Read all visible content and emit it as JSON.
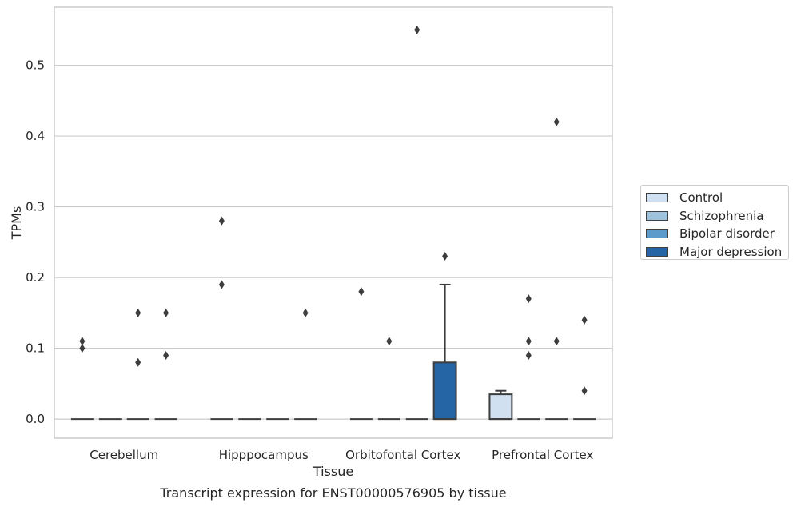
{
  "chart_data": {
    "type": "box",
    "title": "Transcript expression for ENST00000576905 by tissue",
    "xlabel": "Tissue",
    "ylabel": "TPMs",
    "categories": [
      "Cerebellum",
      "Hipppocampus",
      "Orbitofontal Cortex",
      "Prefrontal Cortex"
    ],
    "ylim": [
      -0.027,
      0.582
    ],
    "yticks": [
      0.0,
      0.1,
      0.2,
      0.3,
      0.4,
      0.5
    ],
    "ytick_labels": [
      "0.0",
      "0.1",
      "0.2",
      "0.3",
      "0.4",
      "0.5"
    ],
    "grid": "horizontal",
    "legend_position": "right",
    "series": [
      {
        "name": "Control",
        "color": "#d0e0f0",
        "boxes": [
          {
            "q1": 0,
            "median": 0,
            "q3": 0,
            "whisker_low": 0,
            "whisker_high": 0,
            "outliers": [
              0.1,
              0.11
            ]
          },
          {
            "q1": 0,
            "median": 0,
            "q3": 0,
            "whisker_low": 0,
            "whisker_high": 0,
            "outliers": [
              0.19,
              0.28
            ]
          },
          {
            "q1": 0,
            "median": 0,
            "q3": 0,
            "whisker_low": 0,
            "whisker_high": 0,
            "outliers": [
              0.18
            ]
          },
          {
            "q1": 0,
            "median": 0,
            "q3": 0.035,
            "whisker_low": 0,
            "whisker_high": 0.04,
            "outliers": []
          }
        ]
      },
      {
        "name": "Schizophrenia",
        "color": "#9dc3de",
        "boxes": [
          {
            "q1": 0,
            "median": 0,
            "q3": 0,
            "whisker_low": 0,
            "whisker_high": 0,
            "outliers": []
          },
          {
            "q1": 0,
            "median": 0,
            "q3": 0,
            "whisker_low": 0,
            "whisker_high": 0,
            "outliers": []
          },
          {
            "q1": 0,
            "median": 0,
            "q3": 0,
            "whisker_low": 0,
            "whisker_high": 0,
            "outliers": [
              0.11
            ]
          },
          {
            "q1": 0,
            "median": 0,
            "q3": 0,
            "whisker_low": 0,
            "whisker_high": 0,
            "outliers": [
              0.09,
              0.11,
              0.17
            ]
          }
        ]
      },
      {
        "name": "Bipolar disorder",
        "color": "#5b9bcb",
        "boxes": [
          {
            "q1": 0,
            "median": 0,
            "q3": 0,
            "whisker_low": 0,
            "whisker_high": 0,
            "outliers": [
              0.08,
              0.15
            ]
          },
          {
            "q1": 0,
            "median": 0,
            "q3": 0,
            "whisker_low": 0,
            "whisker_high": 0,
            "outliers": []
          },
          {
            "q1": 0,
            "median": 0,
            "q3": 0,
            "whisker_low": 0,
            "whisker_high": 0,
            "outliers": [
              0.55
            ]
          },
          {
            "q1": 0,
            "median": 0,
            "q3": 0,
            "whisker_low": 0,
            "whisker_high": 0,
            "outliers": [
              0.11,
              0.42
            ]
          }
        ]
      },
      {
        "name": "Major depression",
        "color": "#2565a6",
        "boxes": [
          {
            "q1": 0,
            "median": 0,
            "q3": 0,
            "whisker_low": 0,
            "whisker_high": 0,
            "outliers": [
              0.09,
              0.15
            ]
          },
          {
            "q1": 0,
            "median": 0,
            "q3": 0,
            "whisker_low": 0,
            "whisker_high": 0,
            "outliers": [
              0.15
            ]
          },
          {
            "q1": 0,
            "median": 0,
            "q3": 0.08,
            "whisker_low": 0,
            "whisker_high": 0.19,
            "outliers": [
              0.23
            ]
          },
          {
            "q1": 0,
            "median": 0,
            "q3": 0,
            "whisker_low": 0,
            "whisker_high": 0,
            "outliers": [
              0.04,
              0.14
            ]
          }
        ]
      }
    ]
  }
}
